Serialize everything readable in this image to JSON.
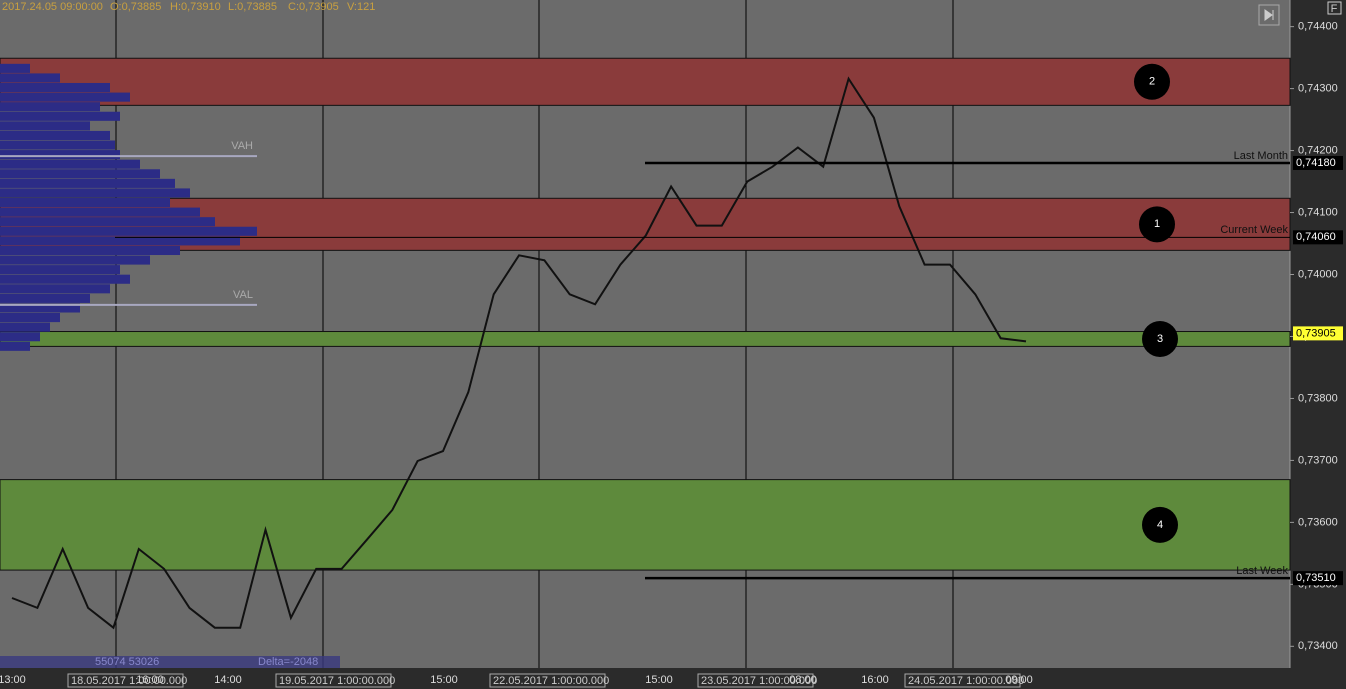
{
  "chart_data": {
    "type": "line",
    "header": [
      "2017.24.05 09:00:00",
      "O:0,73885",
      "H:0,73910",
      "L:0,73885",
      "C:0,73905",
      "V:121"
    ],
    "series": [
      {
        "name": "Price",
        "color": "#111111",
        "values": [
          0.73478,
          0.73462,
          0.73557,
          0.73462,
          0.7343,
          0.73557,
          0.73525,
          0.73462,
          0.7343,
          0.7343,
          0.73588,
          0.73446,
          0.73525,
          0.73525,
          0.73572,
          0.7362,
          0.73699,
          0.73715,
          0.7381,
          0.73968,
          0.74031,
          0.74023,
          0.73968,
          0.73952,
          0.74016,
          0.74063,
          0.74142,
          0.74079,
          0.74079,
          0.7415,
          0.74174,
          0.74205,
          0.74174,
          0.74316,
          0.74253,
          0.7411,
          0.74016,
          0.74016,
          0.73968,
          0.73897,
          0.73892
        ]
      }
    ],
    "ylim": [
      0.73365,
      0.74443
    ],
    "yticks": [
      {
        "value": 0.744,
        "label": "0,74400"
      },
      {
        "value": 0.743,
        "label": "0,74300"
      },
      {
        "value": 0.742,
        "label": "0,74200"
      },
      {
        "value": 0.741,
        "label": "0,74100"
      },
      {
        "value": 0.74,
        "label": "0,74000"
      },
      {
        "value": 0.739,
        "label": "0,73900"
      },
      {
        "value": 0.738,
        "label": "0,73800"
      },
      {
        "value": 0.737,
        "label": "0,73700"
      },
      {
        "value": 0.736,
        "label": "0,73600"
      },
      {
        "value": 0.735,
        "label": "0,73500"
      },
      {
        "value": 0.734,
        "label": "0,73400"
      }
    ],
    "zones": [
      {
        "label": "2",
        "color": "#8a3b3b",
        "range": [
          0.74273,
          0.74349
        ]
      },
      {
        "label": "1",
        "color": "#8a3b3b",
        "range": [
          0.74039,
          0.74123
        ]
      },
      {
        "label": "3",
        "color": "#5e8a3c",
        "range": [
          0.73884,
          0.73908
        ]
      },
      {
        "label": "4",
        "color": "#5e8a3c",
        "range": [
          0.73523,
          0.73669
        ]
      }
    ],
    "levels": [
      {
        "name": "Last Month",
        "value": {
          "value": 0.7418,
          "label": "0,74180"
        }
      },
      {
        "name": "Current Week",
        "value": {
          "value": 0.7406,
          "label": "0,74060"
        }
      },
      {
        "name": "Last Week",
        "value": {
          "value": 0.7351,
          "label": "0,73510"
        }
      }
    ],
    "current_price": {
      "value": 0.73905,
      "label": "0,73905"
    },
    "value_area": [
      {
        "name": "VAH",
        "value": 0.74191
      },
      {
        "name": "VAL",
        "value": 0.73951
      }
    ],
    "volume_profile": {
      "color": "#2c2c86",
      "range": [
        0.7434,
        0.73876
      ],
      "values": [
        30,
        60,
        110,
        130,
        100,
        120,
        90,
        110,
        115,
        120,
        140,
        160,
        175,
        190,
        170,
        200,
        215,
        257,
        240,
        180,
        150,
        120,
        130,
        110,
        90,
        80,
        60,
        50,
        40,
        30
      ]
    },
    "volume_stats": "55074 53026",
    "delta": "Delta=-2048",
    "x_labels": [
      "13:00",
      "16:00",
      "14:00",
      "15:00",
      "15:00",
      "08:00",
      "16:00",
      "09:00"
    ],
    "date_labels": [
      "18.05.2017 1:00:00.000",
      "19.05.2017 1:00:00.000",
      "22.05.2017 1:00:00.000",
      "23.05.2017 1:00:00.000",
      "24.05.2017 1:00:00.000"
    ]
  }
}
